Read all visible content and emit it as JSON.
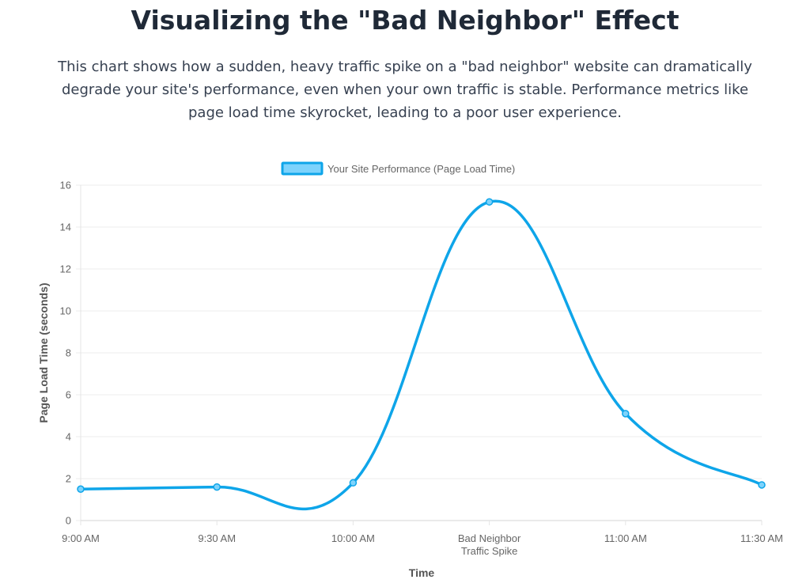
{
  "header": {
    "title": "Visualizing the \"Bad Neighbor\" Effect",
    "description": "This chart shows how a sudden, heavy traffic spike on a \"bad neighbor\" website can dramatically degrade your site's performance, even when your own traffic is stable. Performance metrics like page load time skyrocket, leading to a poor user experience."
  },
  "colors": {
    "line": "#0ea5e9",
    "legend_fill": "#7dd3fc",
    "grid": "#ececec"
  },
  "chart_data": {
    "type": "line",
    "categories": [
      "9:00 AM",
      "9:30 AM",
      "10:00 AM",
      [
        "Bad Neighbor",
        "Traffic Spike"
      ],
      "11:00 AM",
      "11:30 AM"
    ],
    "series": [
      {
        "name": "Your Site Performance (Page Load Time)",
        "values": [
          1.5,
          1.6,
          1.8,
          15.2,
          5.1,
          1.7
        ]
      }
    ],
    "xlabel": "Time",
    "ylabel": "Page Load Time (seconds)",
    "ylim": [
      0,
      16
    ],
    "yticks": [
      0,
      2,
      4,
      6,
      8,
      10,
      12,
      14,
      16
    ],
    "grid": true,
    "legend_position": "top-center",
    "smooth": true
  }
}
